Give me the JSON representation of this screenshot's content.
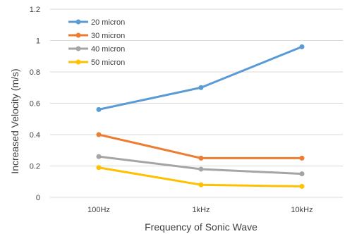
{
  "chart_data": {
    "type": "line",
    "title": "",
    "xlabel": "Frequency of Sonic Wave",
    "ylabel": "Increased Velocity (m/s)",
    "categories": [
      "100Hz",
      "1kHz",
      "10kHz"
    ],
    "ylim": [
      0,
      1.2
    ],
    "yticks": [
      "0",
      "0.2",
      "0.4",
      "0.6",
      "0.8",
      "1",
      "1.2"
    ],
    "grid": true,
    "legend_position": "top-left",
    "series": [
      {
        "name": "20 micron",
        "color": "#5b9bd5",
        "values": [
          0.56,
          0.7,
          0.96
        ]
      },
      {
        "name": "30 micron",
        "color": "#ed7d31",
        "values": [
          0.4,
          0.25,
          0.25
        ]
      },
      {
        "name": "40 micron",
        "color": "#a5a5a5",
        "values": [
          0.26,
          0.18,
          0.15
        ]
      },
      {
        "name": "50 micron",
        "color": "#ffc000",
        "values": [
          0.19,
          0.08,
          0.07
        ]
      }
    ]
  }
}
